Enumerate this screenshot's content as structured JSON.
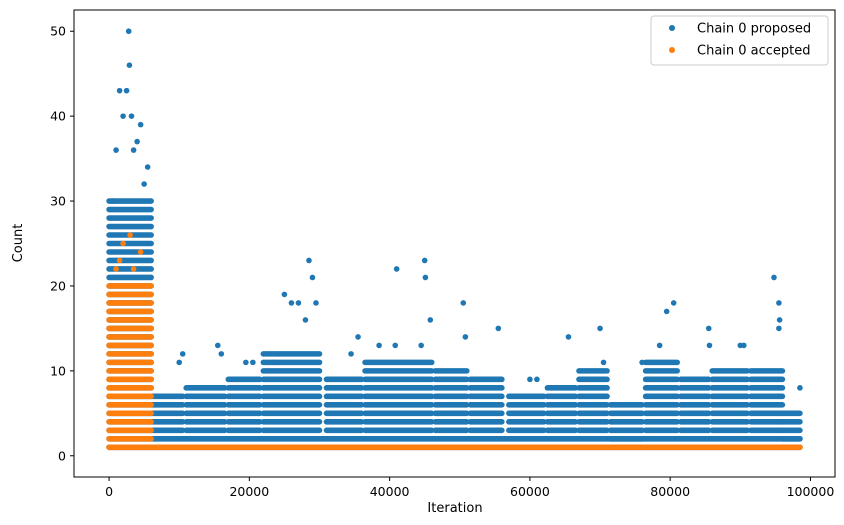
{
  "chart_data": {
    "type": "scatter",
    "xlabel": "Iteration",
    "ylabel": "Count",
    "xlim": [
      -5000,
      103500
    ],
    "ylim": [
      -2.5,
      52.5
    ],
    "xticks": [
      0,
      20000,
      40000,
      60000,
      80000,
      100000
    ],
    "xtick_labels": [
      "0",
      "20000",
      "40000",
      "60000",
      "80000",
      "100000"
    ],
    "yticks": [
      0,
      10,
      20,
      30,
      40,
      50
    ],
    "ytick_labels": [
      "0",
      "10",
      "20",
      "30",
      "40",
      "50"
    ],
    "grid": false,
    "legend_position": "top-right",
    "series": [
      {
        "name": "Chain 0 proposed",
        "color": "#1f77b4",
        "marker": "circle",
        "points": [
          [
            500,
            30
          ],
          [
            1000,
            36
          ],
          [
            1500,
            43
          ],
          [
            2000,
            40
          ],
          [
            2500,
            43
          ],
          [
            2800,
            50
          ],
          [
            2900,
            46
          ],
          [
            3200,
            40
          ],
          [
            3500,
            36
          ],
          [
            4000,
            37
          ],
          [
            4500,
            39
          ],
          [
            5000,
            32
          ],
          [
            5500,
            34
          ],
          [
            10000,
            11
          ],
          [
            10500,
            12
          ],
          [
            15500,
            13
          ],
          [
            16000,
            12
          ],
          [
            19500,
            11
          ],
          [
            20500,
            11
          ],
          [
            23500,
            11
          ],
          [
            25000,
            19
          ],
          [
            26000,
            18
          ],
          [
            27000,
            18
          ],
          [
            28000,
            16
          ],
          [
            28500,
            23
          ],
          [
            29000,
            21
          ],
          [
            29500,
            18
          ],
          [
            34500,
            12
          ],
          [
            35500,
            14
          ],
          [
            38500,
            13
          ],
          [
            41000,
            22
          ],
          [
            40800,
            13
          ],
          [
            44500,
            13
          ],
          [
            45000,
            23
          ],
          [
            45100,
            21
          ],
          [
            45800,
            16
          ],
          [
            50500,
            18
          ],
          [
            50800,
            14
          ],
          [
            55500,
            15
          ],
          [
            60000,
            9
          ],
          [
            61000,
            9
          ],
          [
            65500,
            14
          ],
          [
            70000,
            15
          ],
          [
            70500,
            11
          ],
          [
            76000,
            11
          ],
          [
            78500,
            13
          ],
          [
            79500,
            17
          ],
          [
            80500,
            18
          ],
          [
            85500,
            15
          ],
          [
            85600,
            13
          ],
          [
            90000,
            13
          ],
          [
            90500,
            13
          ],
          [
            94800,
            21
          ],
          [
            95500,
            18
          ],
          [
            95600,
            16
          ],
          [
            95500,
            15
          ],
          [
            98500,
            8
          ]
        ],
        "bands": [
          {
            "x": [
              0,
              6000
            ],
            "y": [
              1,
              30
            ]
          },
          {
            "x": [
              6000,
              98500
            ],
            "y": [
              1,
              2
            ]
          },
          {
            "x": [
              6000,
              10500
            ],
            "y": [
              3,
              7
            ]
          },
          {
            "x": [
              11000,
              16500
            ],
            "y": [
              3,
              8
            ]
          },
          {
            "x": [
              17000,
              21500
            ],
            "y": [
              3,
              9
            ]
          },
          {
            "x": [
              22000,
              30000
            ],
            "y": [
              3,
              12
            ]
          },
          {
            "x": [
              31000,
              36000
            ],
            "y": [
              3,
              9
            ]
          },
          {
            "x": [
              36500,
              46000
            ],
            "y": [
              3,
              11
            ]
          },
          {
            "x": [
              46500,
              51000
            ],
            "y": [
              3,
              10
            ]
          },
          {
            "x": [
              51500,
              56000
            ],
            "y": [
              3,
              9
            ]
          },
          {
            "x": [
              57000,
              62000
            ],
            "y": [
              3,
              7
            ]
          },
          {
            "x": [
              62500,
              66500
            ],
            "y": [
              3,
              8
            ]
          },
          {
            "x": [
              67000,
              71000
            ],
            "y": [
              3,
              10
            ]
          },
          {
            "x": [
              71500,
              76000
            ],
            "y": [
              2,
              6
            ]
          },
          {
            "x": [
              76500,
              81000
            ],
            "y": [
              3,
              11
            ]
          },
          {
            "x": [
              81500,
              85500
            ],
            "y": [
              3,
              9
            ]
          },
          {
            "x": [
              86000,
              91000
            ],
            "y": [
              3,
              10
            ]
          },
          {
            "x": [
              91500,
              96000
            ],
            "y": [
              3,
              10
            ]
          },
          {
            "x": [
              96000,
              98500
            ],
            "y": [
              2,
              5
            ]
          }
        ]
      },
      {
        "name": "Chain 0 accepted",
        "color": "#ff7f0e",
        "marker": "circle",
        "points": [
          [
            1000,
            22
          ],
          [
            1500,
            23
          ],
          [
            2000,
            25
          ],
          [
            3000,
            26
          ],
          [
            3500,
            22
          ],
          [
            4500,
            24
          ],
          [
            5000,
            20
          ],
          [
            1200,
            19
          ]
        ],
        "bands": [
          {
            "x": [
              0,
              6000
            ],
            "y": [
              1,
              20
            ]
          },
          {
            "x": [
              6000,
              98500
            ],
            "y": [
              1,
              1
            ]
          }
        ]
      }
    ]
  }
}
